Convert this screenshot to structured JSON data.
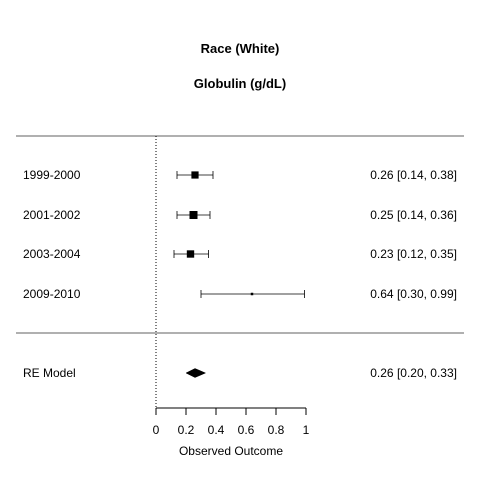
{
  "chart_data": {
    "type": "forest",
    "title": "Race (White)",
    "subtitle": "Globulin (g/dL)",
    "xlabel": "Observed Outcome",
    "xlim": [
      0,
      1
    ],
    "xticks": [
      0,
      0.2,
      0.4,
      0.6,
      0.8,
      1
    ],
    "xtick_labels": [
      "0",
      "0.2",
      "0.4",
      "0.6",
      "0.8",
      "1"
    ],
    "reference_line": 0,
    "studies": [
      {
        "label": "1999-2000",
        "estimate": 0.26,
        "lower": 0.14,
        "upper": 0.38,
        "text": "0.26 [0.14, 0.38]",
        "weight": 0.9
      },
      {
        "label": "2001-2002",
        "estimate": 0.25,
        "lower": 0.14,
        "upper": 0.36,
        "text": "0.25 [0.14, 0.36]",
        "weight": 1.0
      },
      {
        "label": "2003-2004",
        "estimate": 0.23,
        "lower": 0.12,
        "upper": 0.35,
        "text": "0.23 [0.12, 0.35]",
        "weight": 0.92
      },
      {
        "label": "2009-2010",
        "estimate": 0.64,
        "lower": 0.3,
        "upper": 0.99,
        "text": "0.64 [0.30, 0.99]",
        "weight": 0.2
      }
    ],
    "summary": {
      "label": "RE Model",
      "estimate": 0.26,
      "lower": 0.2,
      "upper": 0.33,
      "text": "0.26 [0.20, 0.33]"
    }
  }
}
